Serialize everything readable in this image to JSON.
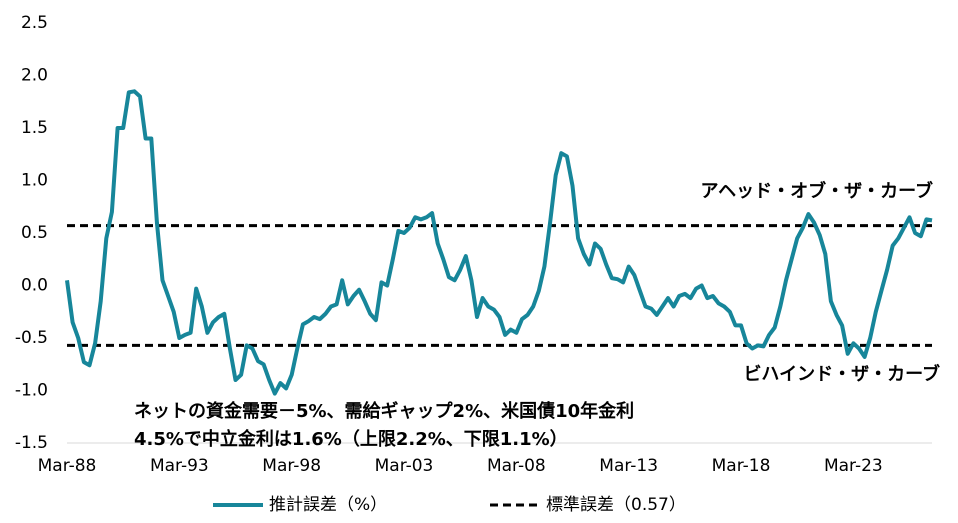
{
  "chart_data": {
    "type": "line",
    "categories": [
      "Mar-88",
      null,
      null,
      null,
      null,
      null,
      null,
      null,
      null,
      null,
      null,
      null,
      null,
      null,
      null,
      null,
      null,
      null,
      null,
      null,
      "Mar-93",
      null,
      null,
      null,
      null,
      null,
      null,
      null,
      null,
      null,
      null,
      null,
      null,
      null,
      null,
      null,
      null,
      null,
      null,
      null,
      "Mar-98",
      null,
      null,
      null,
      null,
      null,
      null,
      null,
      null,
      null,
      null,
      null,
      null,
      null,
      null,
      null,
      null,
      null,
      null,
      null,
      "Mar-03",
      null,
      null,
      null,
      null,
      null,
      null,
      null,
      null,
      null,
      null,
      null,
      null,
      null,
      null,
      null,
      null,
      null,
      null,
      null,
      "Mar-08",
      null,
      null,
      null,
      null,
      null,
      null,
      null,
      null,
      null,
      null,
      null,
      null,
      null,
      null,
      null,
      null,
      null,
      null,
      null,
      "Mar-13",
      null,
      null,
      null,
      null,
      null,
      null,
      null,
      null,
      null,
      null,
      null,
      null,
      null,
      null,
      null,
      null,
      null,
      null,
      null,
      "Mar-18",
      null,
      null,
      null,
      null,
      null,
      null,
      null,
      null,
      null,
      null,
      null,
      null,
      null,
      null,
      null,
      null,
      null,
      null,
      null,
      "Mar-23",
      null,
      null,
      null,
      null,
      null,
      null,
      null,
      null,
      null,
      null,
      null,
      null,
      null,
      null
    ],
    "series": [
      {
        "name": "推計誤差（%）",
        "color": "#17869a",
        "values": [
          0.05,
          -0.35,
          -0.5,
          -0.73,
          -0.76,
          -0.55,
          -0.15,
          0.45,
          0.7,
          1.5,
          1.5,
          1.84,
          1.85,
          1.8,
          1.4,
          1.4,
          0.6,
          0.05,
          -0.1,
          -0.25,
          -0.5,
          -0.47,
          -0.45,
          -0.03,
          -0.2,
          -0.45,
          -0.35,
          -0.3,
          -0.27,
          -0.6,
          -0.9,
          -0.85,
          -0.57,
          -0.6,
          -0.72,
          -0.75,
          -0.9,
          -1.03,
          -0.93,
          -0.98,
          -0.85,
          -0.6,
          -0.37,
          -0.34,
          -0.3,
          -0.32,
          -0.27,
          -0.2,
          -0.18,
          0.05,
          -0.18,
          -0.1,
          -0.04,
          -0.15,
          -0.27,
          -0.33,
          0.03,
          0.0,
          0.25,
          0.52,
          0.5,
          0.55,
          0.65,
          0.63,
          0.65,
          0.69,
          0.4,
          0.25,
          0.08,
          0.05,
          0.15,
          0.28,
          0.05,
          -0.3,
          -0.12,
          -0.2,
          -0.23,
          -0.3,
          -0.47,
          -0.42,
          -0.45,
          -0.32,
          -0.28,
          -0.2,
          -0.05,
          0.18,
          0.6,
          1.05,
          1.26,
          1.23,
          0.95,
          0.45,
          0.3,
          0.2,
          0.4,
          0.35,
          0.2,
          0.07,
          0.06,
          0.03,
          0.18,
          0.1,
          -0.05,
          -0.2,
          -0.22,
          -0.28,
          -0.2,
          -0.12,
          -0.2,
          -0.1,
          -0.08,
          -0.12,
          -0.03,
          0.0,
          -0.12,
          -0.1,
          -0.17,
          -0.2,
          -0.25,
          -0.38,
          -0.38,
          -0.55,
          -0.6,
          -0.57,
          -0.58,
          -0.47,
          -0.4,
          -0.2,
          0.05,
          0.25,
          0.45,
          0.55,
          0.68,
          0.6,
          0.48,
          0.3,
          -0.15,
          -0.28,
          -0.38,
          -0.65,
          -0.55,
          -0.6,
          -0.68,
          -0.5,
          -0.25,
          -0.05,
          0.15,
          0.38,
          0.45,
          0.55,
          0.65,
          0.5,
          0.47,
          0.63,
          0.62
        ]
      }
    ],
    "reference": {
      "name": "標準誤差（0.57）",
      "color": "#000000",
      "values": [
        0.57,
        -0.57
      ]
    },
    "ylim": [
      -1.5,
      2.5
    ],
    "yticks": [
      2.5,
      {
        "value": 2,
        "label": "2.0"
      },
      1.5,
      {
        "value": 1,
        "label": "1.0"
      },
      0.5,
      {
        "value": 0,
        "label": "0.0"
      },
      -0.5,
      {
        "value": -1,
        "label": "-1.0"
      },
      -1.5
    ],
    "annotations": [
      "アヘッド・オブ・ザ・カーブ",
      "ビハインド・ザ・カーブ",
      "ネットの資金需要－5%、需給ギャップ2%、米国債10年金利",
      "4.5%で中立金利は1.6%（上限2.2%、下限1.1%）"
    ],
    "grid": false
  }
}
